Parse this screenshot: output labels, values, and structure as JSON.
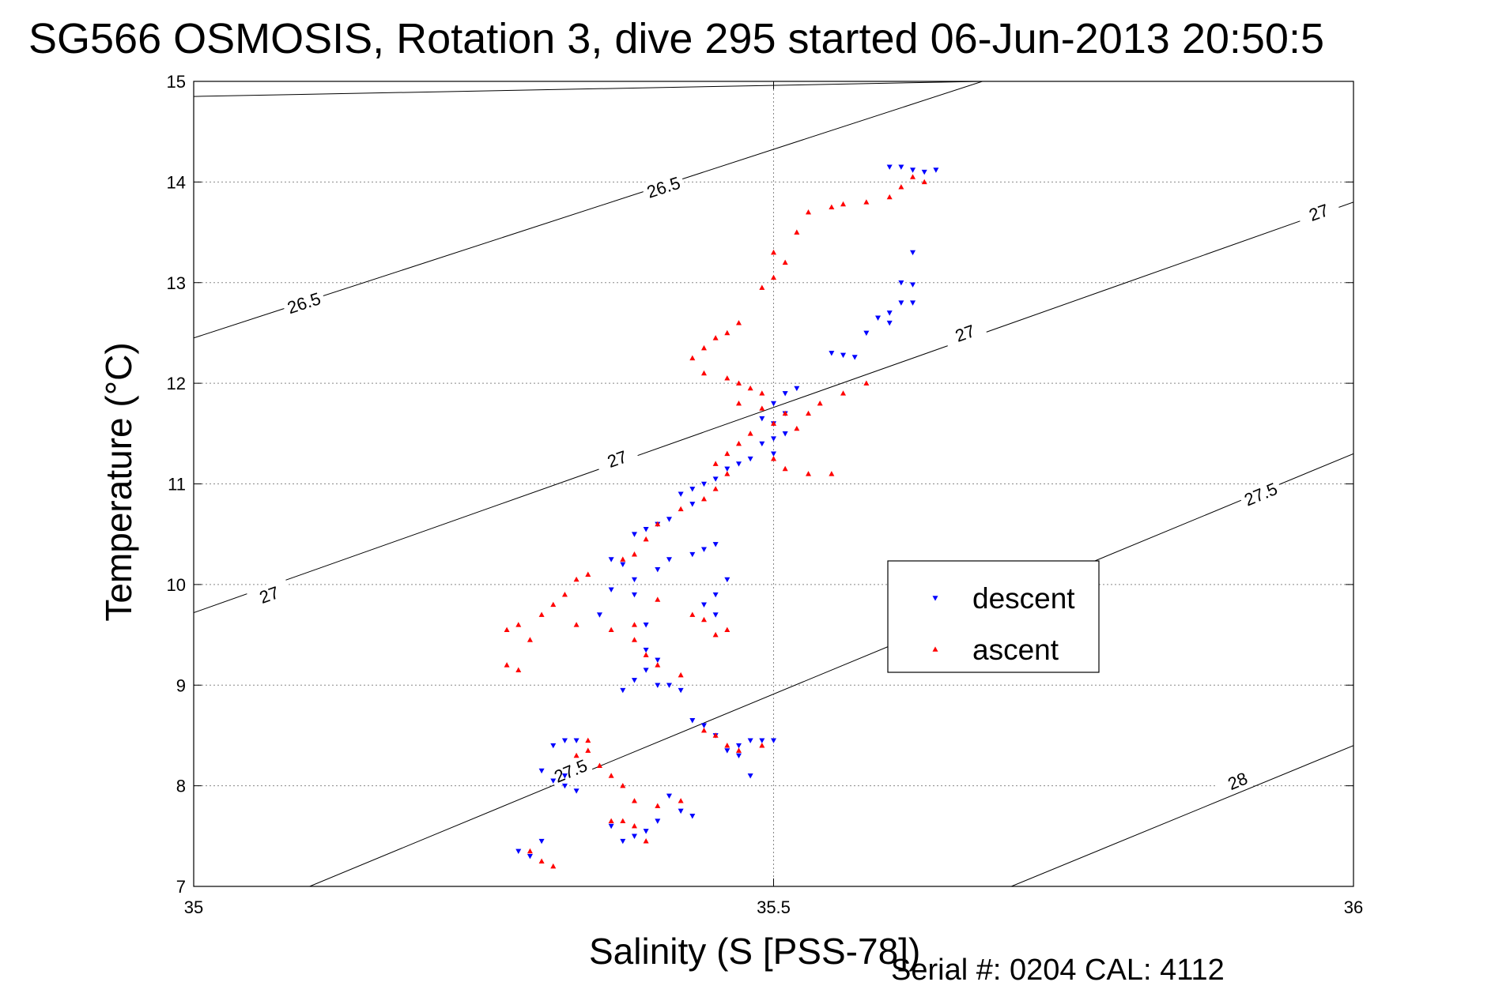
{
  "chart_data": {
    "type": "scatter",
    "title": "SG566 OSMOSIS, Rotation 3, dive 295 started 06-Jun-2013 20:50:5",
    "xlabel": "Salinity (S [PSS-78])",
    "ylabel": "Temperature (°C)",
    "footer": "Serial #: 0204  CAL: 4112",
    "xlim": [
      35,
      36
    ],
    "ylim": [
      7,
      15
    ],
    "xticks": [
      35,
      35.5,
      36
    ],
    "xtick_labels": [
      "35",
      "35.5",
      "36"
    ],
    "yticks": [
      7,
      8,
      9,
      10,
      11,
      12,
      13,
      14,
      15
    ],
    "ytick_labels": [
      "7",
      "8",
      "9",
      "10",
      "11",
      "12",
      "13",
      "14",
      "15"
    ],
    "grid": true,
    "legend_position": "right",
    "density_contours": [
      {
        "label": "26.5",
        "points": [
          [
            35,
            14.85
          ],
          [
            35.68,
            15
          ]
        ],
        "label_positions": []
      },
      {
        "label": "26.5",
        "points": [
          [
            35,
            12.45
          ],
          [
            35.68,
            15
          ]
        ],
        "label_positions": [
          [
            35.095,
            12.8
          ],
          [
            35.405,
            13.95
          ]
        ]
      },
      {
        "label": "27",
        "points": [
          [
            35,
            9.72
          ],
          [
            36,
            13.8
          ]
        ],
        "label_positions": [
          [
            35.065,
            9.9
          ],
          [
            35.365,
            11.25
          ],
          [
            35.665,
            12.5
          ],
          [
            35.97,
            13.7
          ]
        ]
      },
      {
        "label": "27.5",
        "points": [
          [
            35.1,
            7
          ],
          [
            36,
            11.3
          ]
        ],
        "label_positions": [
          [
            35.325,
            8.15
          ],
          [
            35.92,
            10.9
          ]
        ]
      },
      {
        "label": "28",
        "points": [
          [
            35.705,
            7
          ],
          [
            36,
            8.4
          ]
        ],
        "label_positions": [
          [
            35.9,
            8.05
          ]
        ]
      }
    ],
    "series": [
      {
        "name": "descent",
        "color": "#0000ff",
        "marker": "triangle-down",
        "points": [
          [
            35.6,
            14.15
          ],
          [
            35.61,
            14.15
          ],
          [
            35.62,
            14.12
          ],
          [
            35.63,
            14.1
          ],
          [
            35.64,
            14.12
          ],
          [
            35.62,
            13.3
          ],
          [
            35.61,
            13.0
          ],
          [
            35.62,
            12.98
          ],
          [
            35.62,
            12.8
          ],
          [
            35.61,
            12.8
          ],
          [
            35.6,
            12.7
          ],
          [
            35.59,
            12.65
          ],
          [
            35.6,
            12.6
          ],
          [
            35.58,
            12.5
          ],
          [
            35.55,
            12.3
          ],
          [
            35.56,
            12.28
          ],
          [
            35.57,
            12.26
          ],
          [
            35.52,
            11.95
          ],
          [
            35.51,
            11.9
          ],
          [
            35.5,
            11.8
          ],
          [
            35.51,
            11.7
          ],
          [
            35.49,
            11.65
          ],
          [
            35.5,
            11.6
          ],
          [
            35.51,
            11.5
          ],
          [
            35.5,
            11.45
          ],
          [
            35.49,
            11.4
          ],
          [
            35.5,
            11.3
          ],
          [
            35.48,
            11.25
          ],
          [
            35.47,
            11.2
          ],
          [
            35.46,
            11.15
          ],
          [
            35.45,
            11.05
          ],
          [
            35.44,
            11.0
          ],
          [
            35.43,
            10.95
          ],
          [
            35.42,
            10.9
          ],
          [
            35.43,
            10.8
          ],
          [
            35.41,
            10.65
          ],
          [
            35.4,
            10.6
          ],
          [
            35.39,
            10.55
          ],
          [
            35.38,
            10.5
          ],
          [
            35.45,
            10.4
          ],
          [
            35.44,
            10.35
          ],
          [
            35.43,
            10.3
          ],
          [
            35.41,
            10.25
          ],
          [
            35.4,
            10.15
          ],
          [
            35.38,
            10.05
          ],
          [
            35.36,
            9.95
          ],
          [
            35.37,
            10.2
          ],
          [
            35.36,
            10.25
          ],
          [
            35.46,
            10.05
          ],
          [
            35.45,
            9.9
          ],
          [
            35.44,
            9.8
          ],
          [
            35.45,
            9.7
          ],
          [
            35.35,
            9.7
          ],
          [
            35.38,
            9.9
          ],
          [
            35.39,
            9.6
          ],
          [
            35.39,
            9.35
          ],
          [
            35.4,
            9.25
          ],
          [
            35.39,
            9.15
          ],
          [
            35.38,
            9.05
          ],
          [
            35.4,
            9.0
          ],
          [
            35.41,
            9.0
          ],
          [
            35.42,
            8.95
          ],
          [
            35.37,
            8.95
          ],
          [
            35.43,
            8.65
          ],
          [
            35.44,
            8.6
          ],
          [
            35.45,
            8.5
          ],
          [
            35.47,
            8.4
          ],
          [
            35.48,
            8.45
          ],
          [
            35.49,
            8.45
          ],
          [
            35.5,
            8.45
          ],
          [
            35.46,
            8.35
          ],
          [
            35.33,
            8.45
          ],
          [
            35.32,
            8.45
          ],
          [
            35.31,
            8.4
          ],
          [
            35.3,
            8.15
          ],
          [
            35.32,
            8.1
          ],
          [
            35.31,
            8.05
          ],
          [
            35.32,
            8.0
          ],
          [
            35.33,
            7.95
          ],
          [
            35.41,
            7.9
          ],
          [
            35.42,
            7.75
          ],
          [
            35.43,
            7.7
          ],
          [
            35.4,
            7.65
          ],
          [
            35.39,
            7.55
          ],
          [
            35.38,
            7.5
          ],
          [
            35.37,
            7.45
          ],
          [
            35.36,
            7.6
          ],
          [
            35.3,
            7.45
          ],
          [
            35.28,
            7.35
          ],
          [
            35.29,
            7.3
          ],
          [
            35.48,
            8.1
          ],
          [
            35.47,
            8.3
          ]
        ]
      },
      {
        "name": "ascent",
        "color": "#ff0000",
        "marker": "triangle-up",
        "points": [
          [
            35.62,
            14.05
          ],
          [
            35.63,
            14.0
          ],
          [
            35.61,
            13.95
          ],
          [
            35.6,
            13.85
          ],
          [
            35.58,
            13.8
          ],
          [
            35.56,
            13.78
          ],
          [
            35.55,
            13.75
          ],
          [
            35.53,
            13.7
          ],
          [
            35.52,
            13.5
          ],
          [
            35.5,
            13.3
          ],
          [
            35.51,
            13.2
          ],
          [
            35.5,
            13.05
          ],
          [
            35.49,
            12.95
          ],
          [
            35.47,
            12.6
          ],
          [
            35.46,
            12.5
          ],
          [
            35.45,
            12.45
          ],
          [
            35.44,
            12.35
          ],
          [
            35.43,
            12.25
          ],
          [
            35.44,
            12.1
          ],
          [
            35.46,
            12.05
          ],
          [
            35.47,
            12.0
          ],
          [
            35.48,
            11.95
          ],
          [
            35.49,
            11.9
          ],
          [
            35.47,
            11.8
          ],
          [
            35.49,
            11.75
          ],
          [
            35.51,
            11.7
          ],
          [
            35.5,
            11.6
          ],
          [
            35.52,
            11.55
          ],
          [
            35.53,
            11.7
          ],
          [
            35.54,
            11.8
          ],
          [
            35.56,
            11.9
          ],
          [
            35.58,
            12.0
          ],
          [
            35.48,
            11.5
          ],
          [
            35.47,
            11.4
          ],
          [
            35.46,
            11.3
          ],
          [
            35.45,
            11.2
          ],
          [
            35.46,
            11.1
          ],
          [
            35.5,
            11.25
          ],
          [
            35.51,
            11.15
          ],
          [
            35.53,
            11.1
          ],
          [
            35.55,
            11.1
          ],
          [
            35.45,
            10.95
          ],
          [
            35.44,
            10.85
          ],
          [
            35.42,
            10.75
          ],
          [
            35.4,
            10.6
          ],
          [
            35.39,
            10.45
          ],
          [
            35.38,
            10.3
          ],
          [
            35.37,
            10.25
          ],
          [
            35.34,
            10.1
          ],
          [
            35.33,
            10.05
          ],
          [
            35.32,
            9.9
          ],
          [
            35.31,
            9.8
          ],
          [
            35.3,
            9.7
          ],
          [
            35.28,
            9.6
          ],
          [
            35.27,
            9.55
          ],
          [
            35.29,
            9.45
          ],
          [
            35.27,
            9.2
          ],
          [
            35.28,
            9.15
          ],
          [
            35.33,
            9.6
          ],
          [
            35.36,
            9.55
          ],
          [
            35.38,
            9.6
          ],
          [
            35.4,
            9.85
          ],
          [
            35.43,
            9.7
          ],
          [
            35.44,
            9.65
          ],
          [
            35.45,
            9.5
          ],
          [
            35.46,
            9.55
          ],
          [
            35.38,
            9.45
          ],
          [
            35.39,
            9.3
          ],
          [
            35.4,
            9.2
          ],
          [
            35.42,
            9.1
          ],
          [
            35.34,
            8.45
          ],
          [
            35.34,
            8.35
          ],
          [
            35.33,
            8.3
          ],
          [
            35.35,
            8.2
          ],
          [
            35.36,
            8.1
          ],
          [
            35.44,
            8.55
          ],
          [
            35.45,
            8.5
          ],
          [
            35.46,
            8.4
          ],
          [
            35.47,
            8.35
          ],
          [
            35.49,
            8.4
          ],
          [
            35.37,
            8.0
          ],
          [
            35.38,
            7.85
          ],
          [
            35.4,
            7.8
          ],
          [
            35.42,
            7.85
          ],
          [
            35.36,
            7.65
          ],
          [
            35.37,
            7.65
          ],
          [
            35.38,
            7.6
          ],
          [
            35.39,
            7.45
          ],
          [
            35.3,
            7.25
          ],
          [
            35.31,
            7.2
          ],
          [
            35.29,
            7.35
          ]
        ]
      }
    ]
  }
}
